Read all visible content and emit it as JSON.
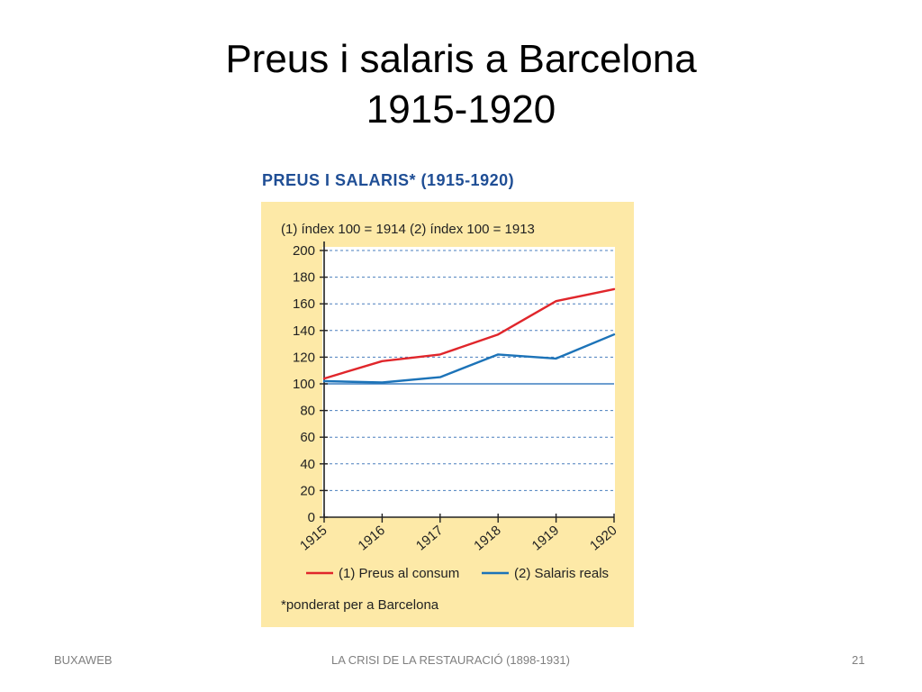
{
  "slide": {
    "title_line1": "Preus i salaris a Barcelona",
    "title_line2": "1915-1920"
  },
  "figure": {
    "heading": "PREUS I SALARIS* (1915-1920)",
    "note": "(1) índex 100 = 1914   (2) índex 100 = 1913",
    "footnote": "*ponderat per a Barcelona"
  },
  "chart_data": {
    "type": "line",
    "title": "PREUS I SALARIS* (1915-1920)",
    "categories": [
      "1915",
      "1916",
      "1917",
      "1918",
      "1919",
      "1920"
    ],
    "series": [
      {
        "name": "(1) Preus al consum",
        "color": "#e0262b",
        "values": [
          104,
          117,
          122,
          137,
          162,
          171
        ]
      },
      {
        "name": "(2) Salaris reals",
        "color": "#1c73b8",
        "values": [
          102,
          101,
          105,
          122,
          119,
          137
        ]
      }
    ],
    "ylim": [
      0,
      200
    ],
    "yticks": [
      0,
      20,
      40,
      60,
      80,
      100,
      120,
      140,
      160,
      180,
      200
    ],
    "reference_line": 100,
    "grid": true,
    "legend_position": "bottom"
  },
  "footer": {
    "left": "BUXAWEB",
    "center": "LA CRISI DE LA RESTAURACIÓ (1898-1931)",
    "page": "21"
  }
}
